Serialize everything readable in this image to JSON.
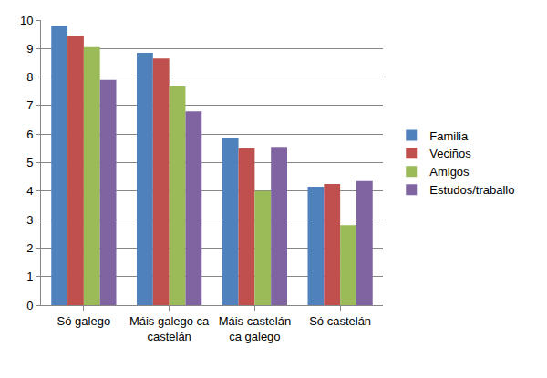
{
  "chart_data": {
    "type": "bar",
    "categories": [
      "Só galego",
      "Máis galego ca castelán",
      "Máis castelán ca galego",
      "Só castelán"
    ],
    "series": [
      {
        "name": "Familia",
        "color": "#4F81BD",
        "values": [
          9.8,
          8.85,
          5.85,
          4.15
        ]
      },
      {
        "name": "Veciños",
        "color": "#C0504D",
        "values": [
          9.45,
          8.65,
          5.5,
          4.25
        ]
      },
      {
        "name": "Amigos",
        "color": "#9BBB59",
        "values": [
          9.05,
          7.7,
          4.0,
          2.8
        ]
      },
      {
        "name": "Estudos/traballo",
        "color": "#8064A2",
        "values": [
          7.9,
          6.8,
          5.55,
          4.35
        ]
      }
    ],
    "ylim": [
      0,
      10
    ],
    "yticks": [
      0,
      1,
      2,
      3,
      4,
      5,
      6,
      7,
      8,
      9,
      10
    ],
    "grid": true,
    "legend": "right"
  }
}
